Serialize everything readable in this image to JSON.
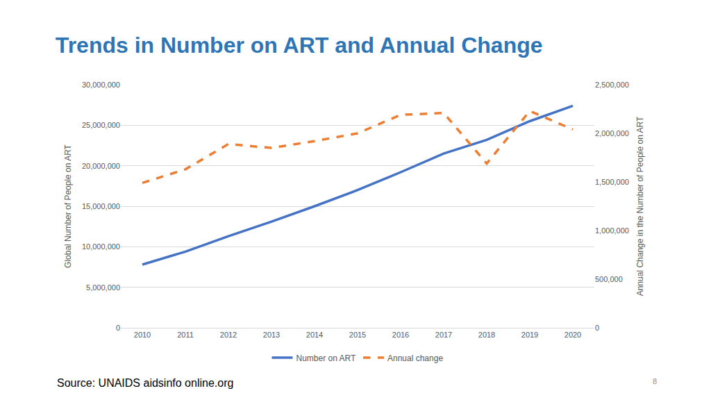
{
  "chart_data": {
    "type": "line",
    "title": "Trends in Number on ART and Annual Change",
    "categories": [
      "2010",
      "2011",
      "2012",
      "2013",
      "2014",
      "2015",
      "2016",
      "2017",
      "2018",
      "2019",
      "2020"
    ],
    "series": [
      {
        "name": "Number on ART",
        "color": "#4472c4",
        "line_style": "solid",
        "values": [
          7800000,
          9400000,
          11300000,
          13100000,
          15000000,
          17000000,
          19200000,
          21500000,
          23200000,
          25500000,
          27400000
        ]
      },
      {
        "name": "Annual change",
        "color": "#ed7d31",
        "line_style": "dash",
        "axis": "y2",
        "values": [
          1490000,
          1630000,
          1890000,
          1850000,
          1920000,
          2000000,
          2190000,
          2210000,
          1690000,
          2230000,
          2040000
        ]
      }
    ],
    "ylabel": "Global Number of People on ART",
    "y2label": "Annual Change in the Number of People on ART",
    "ylim": [
      0,
      30000000
    ],
    "yticks": [
      0,
      {
        "value": 5000000,
        "label": "5,000,000"
      },
      {
        "value": 10000000,
        "label": "10,000,000"
      },
      {
        "value": 15000000,
        "label": "15,000,000"
      },
      {
        "value": 20000000,
        "label": "20,000,000"
      },
      {
        "value": 25000000,
        "label": "25,000,000"
      },
      {
        "value": 30000000,
        "label": "30,000,000"
      }
    ],
    "y2lim": [
      0,
      2500000
    ],
    "y2ticks": [
      0,
      {
        "value": 500000,
        "label": "500,000"
      },
      {
        "value": 1000000,
        "label": "1,000,000"
      },
      {
        "value": 1500000,
        "label": "1,500,000"
      },
      {
        "value": 2000000,
        "label": "2,000,000"
      },
      {
        "value": 2500000,
        "label": "2,500,000"
      }
    ],
    "grid": true,
    "legend": "bottom",
    "annotations": [
      "Source: UNAIDS aidsinfo online.org",
      "8"
    ]
  }
}
